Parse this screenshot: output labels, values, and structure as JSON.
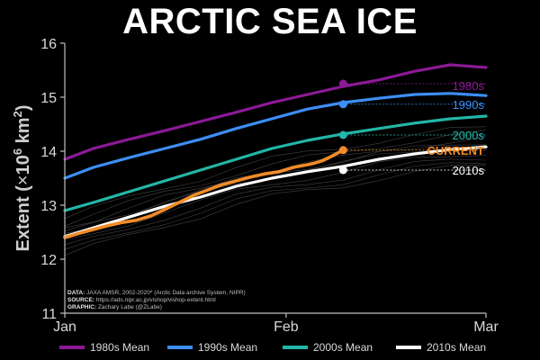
{
  "chart_data": {
    "type": "line",
    "title": "ARCTIC SEA ICE",
    "ylabel": "Extent (×10⁶ km²)",
    "ylabel_parts": [
      "Extent (",
      "×",
      "10",
      "6",
      " km",
      "2",
      ")"
    ],
    "xlabel": "",
    "x_ticks": [
      "Jan",
      "Feb",
      "Mar"
    ],
    "x_range_days": [
      1,
      60
    ],
    "y_ticks": [
      11,
      12,
      13,
      14,
      15,
      16
    ],
    "ylim": [
      11,
      16
    ],
    "grid": false,
    "colors": {
      "1980s": "#8c1a96",
      "1990s": "#3d8ef5",
      "2000s": "#23b6a7",
      "2010s": "#ffffff",
      "current": "#f28c28",
      "years": "#5a5a5a",
      "axis": "#bfbfbf"
    },
    "series": [
      {
        "name": "1980s Mean",
        "key": "1980s",
        "end_label": "1980s",
        "days": [
          1,
          5,
          10,
          15,
          20,
          25,
          30,
          35,
          40,
          45,
          50,
          55,
          60
        ],
        "values": [
          13.85,
          14.05,
          14.22,
          14.38,
          14.55,
          14.72,
          14.9,
          15.05,
          15.2,
          15.32,
          15.48,
          15.6,
          15.55
        ]
      },
      {
        "name": "1990s Mean",
        "key": "1990s",
        "end_label": "1990s",
        "days": [
          1,
          5,
          10,
          15,
          20,
          25,
          30,
          35,
          40,
          45,
          50,
          55,
          60
        ],
        "values": [
          13.5,
          13.7,
          13.88,
          14.05,
          14.22,
          14.42,
          14.6,
          14.78,
          14.9,
          14.98,
          15.05,
          15.07,
          15.03
        ]
      },
      {
        "name": "2000s Mean",
        "key": "2000s",
        "end_label": "2000s",
        "days": [
          1,
          5,
          10,
          15,
          20,
          25,
          30,
          35,
          40,
          45,
          50,
          55,
          60
        ],
        "values": [
          12.9,
          13.05,
          13.25,
          13.45,
          13.65,
          13.85,
          14.05,
          14.2,
          14.32,
          14.42,
          14.52,
          14.6,
          14.65
        ]
      },
      {
        "name": "2010s Mean",
        "key": "2010s",
        "end_label": "2010s",
        "days": [
          1,
          5,
          10,
          15,
          20,
          25,
          30,
          35,
          40,
          45,
          50,
          55,
          60
        ],
        "values": [
          12.42,
          12.58,
          12.78,
          12.98,
          13.15,
          13.35,
          13.5,
          13.62,
          13.72,
          13.85,
          13.95,
          14.03,
          14.08
        ]
      }
    ],
    "current": {
      "name": "CURRENT",
      "days": [
        1,
        3,
        5,
        7,
        9,
        11,
        13,
        15,
        17,
        19,
        21,
        23,
        25,
        27,
        29,
        31,
        33,
        35,
        36,
        37,
        38,
        39,
        40
      ],
      "values": [
        12.4,
        12.48,
        12.55,
        12.62,
        12.68,
        12.72,
        12.8,
        12.92,
        13.05,
        13.18,
        13.28,
        13.38,
        13.45,
        13.52,
        13.58,
        13.62,
        13.7,
        13.75,
        13.78,
        13.82,
        13.88,
        13.95,
        14.02
      ]
    },
    "markers": [
      {
        "key": "1980s",
        "day": 40,
        "value": 15.25
      },
      {
        "key": "1990s",
        "day": 40,
        "value": 14.87
      },
      {
        "key": "2000s",
        "day": 40,
        "value": 14.3
      },
      {
        "key": "current",
        "day": 40,
        "value": 14.02
      },
      {
        "key": "2010s",
        "day": 40,
        "value": 13.65
      }
    ],
    "end_labels": [
      {
        "text": "1980s",
        "key": "1980s",
        "value": 15.22,
        "bold": false
      },
      {
        "text": "1990s",
        "key": "1990s",
        "value": 14.87,
        "bold": false
      },
      {
        "text": "2000s",
        "key": "2000s",
        "value": 14.3,
        "bold": false
      },
      {
        "text": "CURRENT",
        "key": "current",
        "value": 14.02,
        "bold": true
      },
      {
        "text": "2010s",
        "key": "2010s",
        "value": 13.65,
        "bold": false
      }
    ],
    "legend": {
      "position": "bottom",
      "items": [
        {
          "label": "1980s Mean",
          "key": "1980s"
        },
        {
          "label": "1990s Mean",
          "key": "1990s"
        },
        {
          "label": "2000s Mean",
          "key": "2000s"
        },
        {
          "label": "2010s Mean",
          "key": "2010s"
        }
      ]
    },
    "credits": [
      {
        "label": "DATA:",
        "text": " JAXA AMSR, 2002-2020* (Arctic Data archive System, NIPR)"
      },
      {
        "label": "SOURCE:",
        "text": " https://ads.nipr.ac.jp/vishop/vishop-extent.html"
      },
      {
        "label": "GRAPHIC:",
        "text": " Zachary Labe (@ZLabe)"
      }
    ]
  }
}
